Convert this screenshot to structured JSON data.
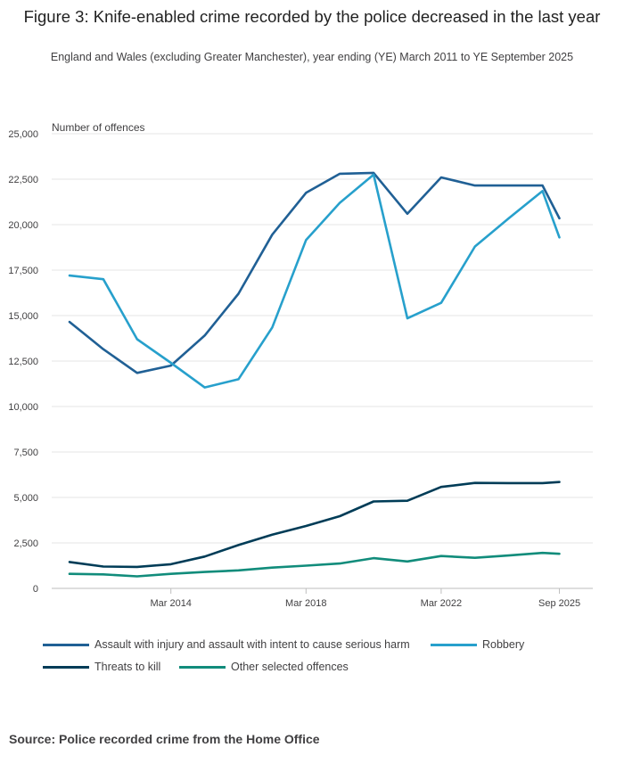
{
  "chart_data": {
    "type": "line",
    "title": "Figure 3: Knife-enabled crime recorded by the police decreased in the last year",
    "subtitle": "England and Wales (excluding Greater Manchester), year ending (YE) March 2011 to YE September 2025",
    "ylabel": "Number of offences",
    "xlabel": "",
    "ylim": [
      0,
      25000
    ],
    "yticks": [
      0,
      2500,
      5000,
      7500,
      10000,
      12500,
      15000,
      17500,
      20000,
      22500,
      25000
    ],
    "ytick_labels": [
      "0",
      "2,500",
      "5,000",
      "7,500",
      "10,000",
      "12,500",
      "15,000",
      "17,500",
      "20,000",
      "22,500",
      "25,000"
    ],
    "x": [
      2011,
      2012,
      2013,
      2014,
      2015,
      2016,
      2017,
      2018,
      2019,
      2020,
      2021,
      2022,
      2023,
      2024,
      2025,
      2025.5
    ],
    "xticks": [
      {
        "x": 2014,
        "label": "Mar 2014"
      },
      {
        "x": 2018,
        "label": "Mar 2018"
      },
      {
        "x": 2022,
        "label": "Mar 2022"
      },
      {
        "x": 2025.5,
        "label": "Sep 2025"
      }
    ],
    "series": [
      {
        "name": "Assault with injury and assault with intent to cause serious harm",
        "color": "#206095",
        "values": [
          14650,
          13150,
          11850,
          12250,
          13900,
          16200,
          19450,
          21750,
          22800,
          22850,
          20600,
          22600,
          22150,
          22150,
          22150,
          20350
        ]
      },
      {
        "name": "Robbery",
        "color": "#27a0cc",
        "values": [
          17200,
          17000,
          13700,
          12400,
          11050,
          11500,
          14350,
          19150,
          21200,
          22750,
          14850,
          15700,
          18800,
          20350,
          21850,
          19300
        ]
      },
      {
        "name": "Threats to kill",
        "color": "#003c57",
        "values": [
          1450,
          1200,
          1180,
          1330,
          1750,
          2380,
          2950,
          3430,
          3970,
          4780,
          4820,
          5580,
          5800,
          5790,
          5790,
          5850
        ]
      },
      {
        "name": "Other selected offences",
        "color": "#118c7b",
        "values": [
          800,
          770,
          660,
          800,
          900,
          990,
          1140,
          1250,
          1370,
          1660,
          1480,
          1780,
          1680,
          1810,
          1950,
          1900
        ]
      }
    ]
  },
  "source": "Source: Police recorded crime from the Home Office"
}
